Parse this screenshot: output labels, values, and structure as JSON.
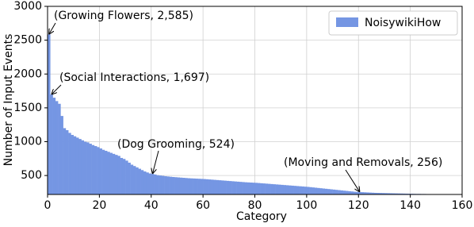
{
  "chart_data": {
    "type": "bar",
    "xlabel": "Category",
    "ylabel": "Number of Input Events",
    "x": [
      0,
      1,
      2,
      3,
      4,
      5,
      6,
      7,
      8,
      9,
      10,
      11,
      12,
      13,
      14,
      15,
      16,
      17,
      18,
      19,
      20,
      21,
      22,
      23,
      24,
      25,
      26,
      27,
      28,
      29,
      30,
      31,
      32,
      33,
      34,
      35,
      36,
      37,
      38,
      39,
      40,
      41,
      42,
      43,
      44,
      45,
      46,
      47,
      48,
      49,
      50,
      51,
      52,
      53,
      54,
      55,
      56,
      57,
      58,
      59,
      60,
      61,
      62,
      63,
      64,
      65,
      66,
      67,
      68,
      69,
      70,
      71,
      72,
      73,
      74,
      75,
      76,
      77,
      78,
      79,
      80,
      81,
      82,
      83,
      84,
      85,
      86,
      87,
      88,
      89,
      90,
      91,
      92,
      93,
      94,
      95,
      96,
      97,
      98,
      99,
      100,
      101,
      102,
      103,
      104,
      105,
      106,
      107,
      108,
      109,
      110,
      111,
      112,
      113,
      114,
      115,
      116,
      117,
      118,
      119,
      120,
      121,
      122,
      123,
      124,
      125,
      126,
      127,
      128,
      129,
      130,
      131,
      132,
      133,
      134,
      135,
      136,
      137,
      138,
      139,
      140,
      141,
      142,
      143,
      144,
      145,
      146,
      147,
      148,
      149,
      150,
      151,
      152,
      153,
      154,
      155,
      156,
      157
    ],
    "series": [
      {
        "name": "NoisywikiHow",
        "color": "#7596e3",
        "values": [
          2585,
          1697,
          1650,
          1600,
          1560,
          1380,
          1200,
          1170,
          1130,
          1100,
          1080,
          1060,
          1040,
          1020,
          1000,
          990,
          970,
          950,
          935,
          920,
          900,
          880,
          865,
          850,
          835,
          820,
          805,
          790,
          760,
          745,
          720,
          690,
          660,
          640,
          620,
          600,
          580,
          560,
          545,
          530,
          524,
          515,
          505,
          500,
          495,
          490,
          486,
          482,
          478,
          475,
          472,
          469,
          466,
          463,
          460,
          458,
          456,
          454,
          452,
          450,
          448,
          445,
          442,
          439,
          436,
          433,
          430,
          427,
          424,
          421,
          418,
          415,
          412,
          409,
          406,
          403,
          400,
          398,
          396,
          394,
          392,
          389,
          386,
          383,
          380,
          377,
          374,
          371,
          368,
          365,
          362,
          359,
          356,
          353,
          350,
          347,
          344,
          341,
          338,
          335,
          332,
          328,
          324,
          320,
          316,
          312,
          308,
          304,
          300,
          296,
          292,
          288,
          284,
          280,
          276,
          272,
          268,
          264,
          260,
          258,
          256,
          254,
          252,
          250,
          248,
          246,
          244,
          243,
          242,
          241,
          240,
          239,
          238,
          237,
          236,
          235,
          234,
          233,
          232,
          231,
          230,
          229,
          228,
          228,
          227,
          227,
          226,
          226,
          225,
          225,
          224,
          224,
          223,
          223,
          222,
          222,
          221,
          221
        ]
      }
    ],
    "xlim": [
      0,
      160
    ],
    "xticks": [
      0,
      20,
      40,
      60,
      80,
      100,
      120,
      140,
      160
    ],
    "ylim": [
      220,
      3000
    ],
    "yticks": [
      500,
      1000,
      1500,
      2000,
      2500,
      3000
    ],
    "grid": true,
    "legend": "upper right",
    "annotations": [
      {
        "text": "(Growing Flowers, 2,585)",
        "x": 0,
        "y": 2585
      },
      {
        "text": "(Social Interactions, 1,697)",
        "x": 1,
        "y": 1697
      },
      {
        "text": "(Dog Grooming, 524)",
        "x": 40,
        "y": 524
      },
      {
        "text": "(Moving and Removals, 256)",
        "x": 120,
        "y": 256
      }
    ]
  }
}
